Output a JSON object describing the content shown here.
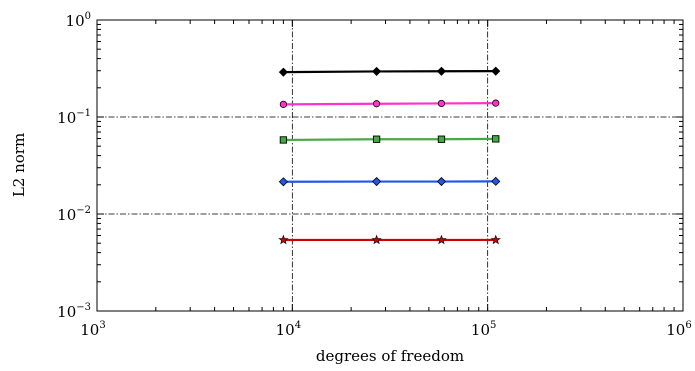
{
  "chart_data": {
    "type": "line",
    "title": "",
    "xlabel": "degrees of freedom",
    "ylabel": "L2 norm",
    "xscale": "log",
    "yscale": "log",
    "xlim": [
      1000,
      1000000
    ],
    "ylim": [
      0.001,
      1
    ],
    "x_ticks": [
      {
        "value": 1000,
        "base": "10",
        "exp": "3"
      },
      {
        "value": 10000,
        "base": "10",
        "exp": "4"
      },
      {
        "value": 100000,
        "base": "10",
        "exp": "5"
      },
      {
        "value": 1000000,
        "base": "10",
        "exp": "6"
      }
    ],
    "y_ticks": [
      {
        "value": 1,
        "base": "10",
        "exp": "0"
      },
      {
        "value": 0.1,
        "base": "10",
        "exp": "−1"
      },
      {
        "value": 0.01,
        "base": "10",
        "exp": "−2"
      },
      {
        "value": 0.001,
        "base": "10",
        "exp": "−3"
      }
    ],
    "grid": true,
    "legend": "none",
    "x": [
      9000,
      27000,
      58000,
      110000
    ],
    "series": [
      {
        "values": [
          0.29,
          0.295,
          0.296,
          0.297
        ],
        "color": "#000000",
        "marker": "diamond"
      },
      {
        "values": [
          0.135,
          0.137,
          0.138,
          0.139
        ],
        "color": "#ff33cc",
        "marker": "circle"
      },
      {
        "values": [
          0.058,
          0.059,
          0.059,
          0.0595
        ],
        "color": "#44aa44",
        "marker": "square"
      },
      {
        "values": [
          0.0215,
          0.0216,
          0.0216,
          0.0217
        ],
        "color": "#2255ee",
        "marker": "diamond"
      },
      {
        "values": [
          0.0054,
          0.0054,
          0.0054,
          0.0054
        ],
        "color": "#cc0000",
        "marker": "star"
      }
    ]
  }
}
